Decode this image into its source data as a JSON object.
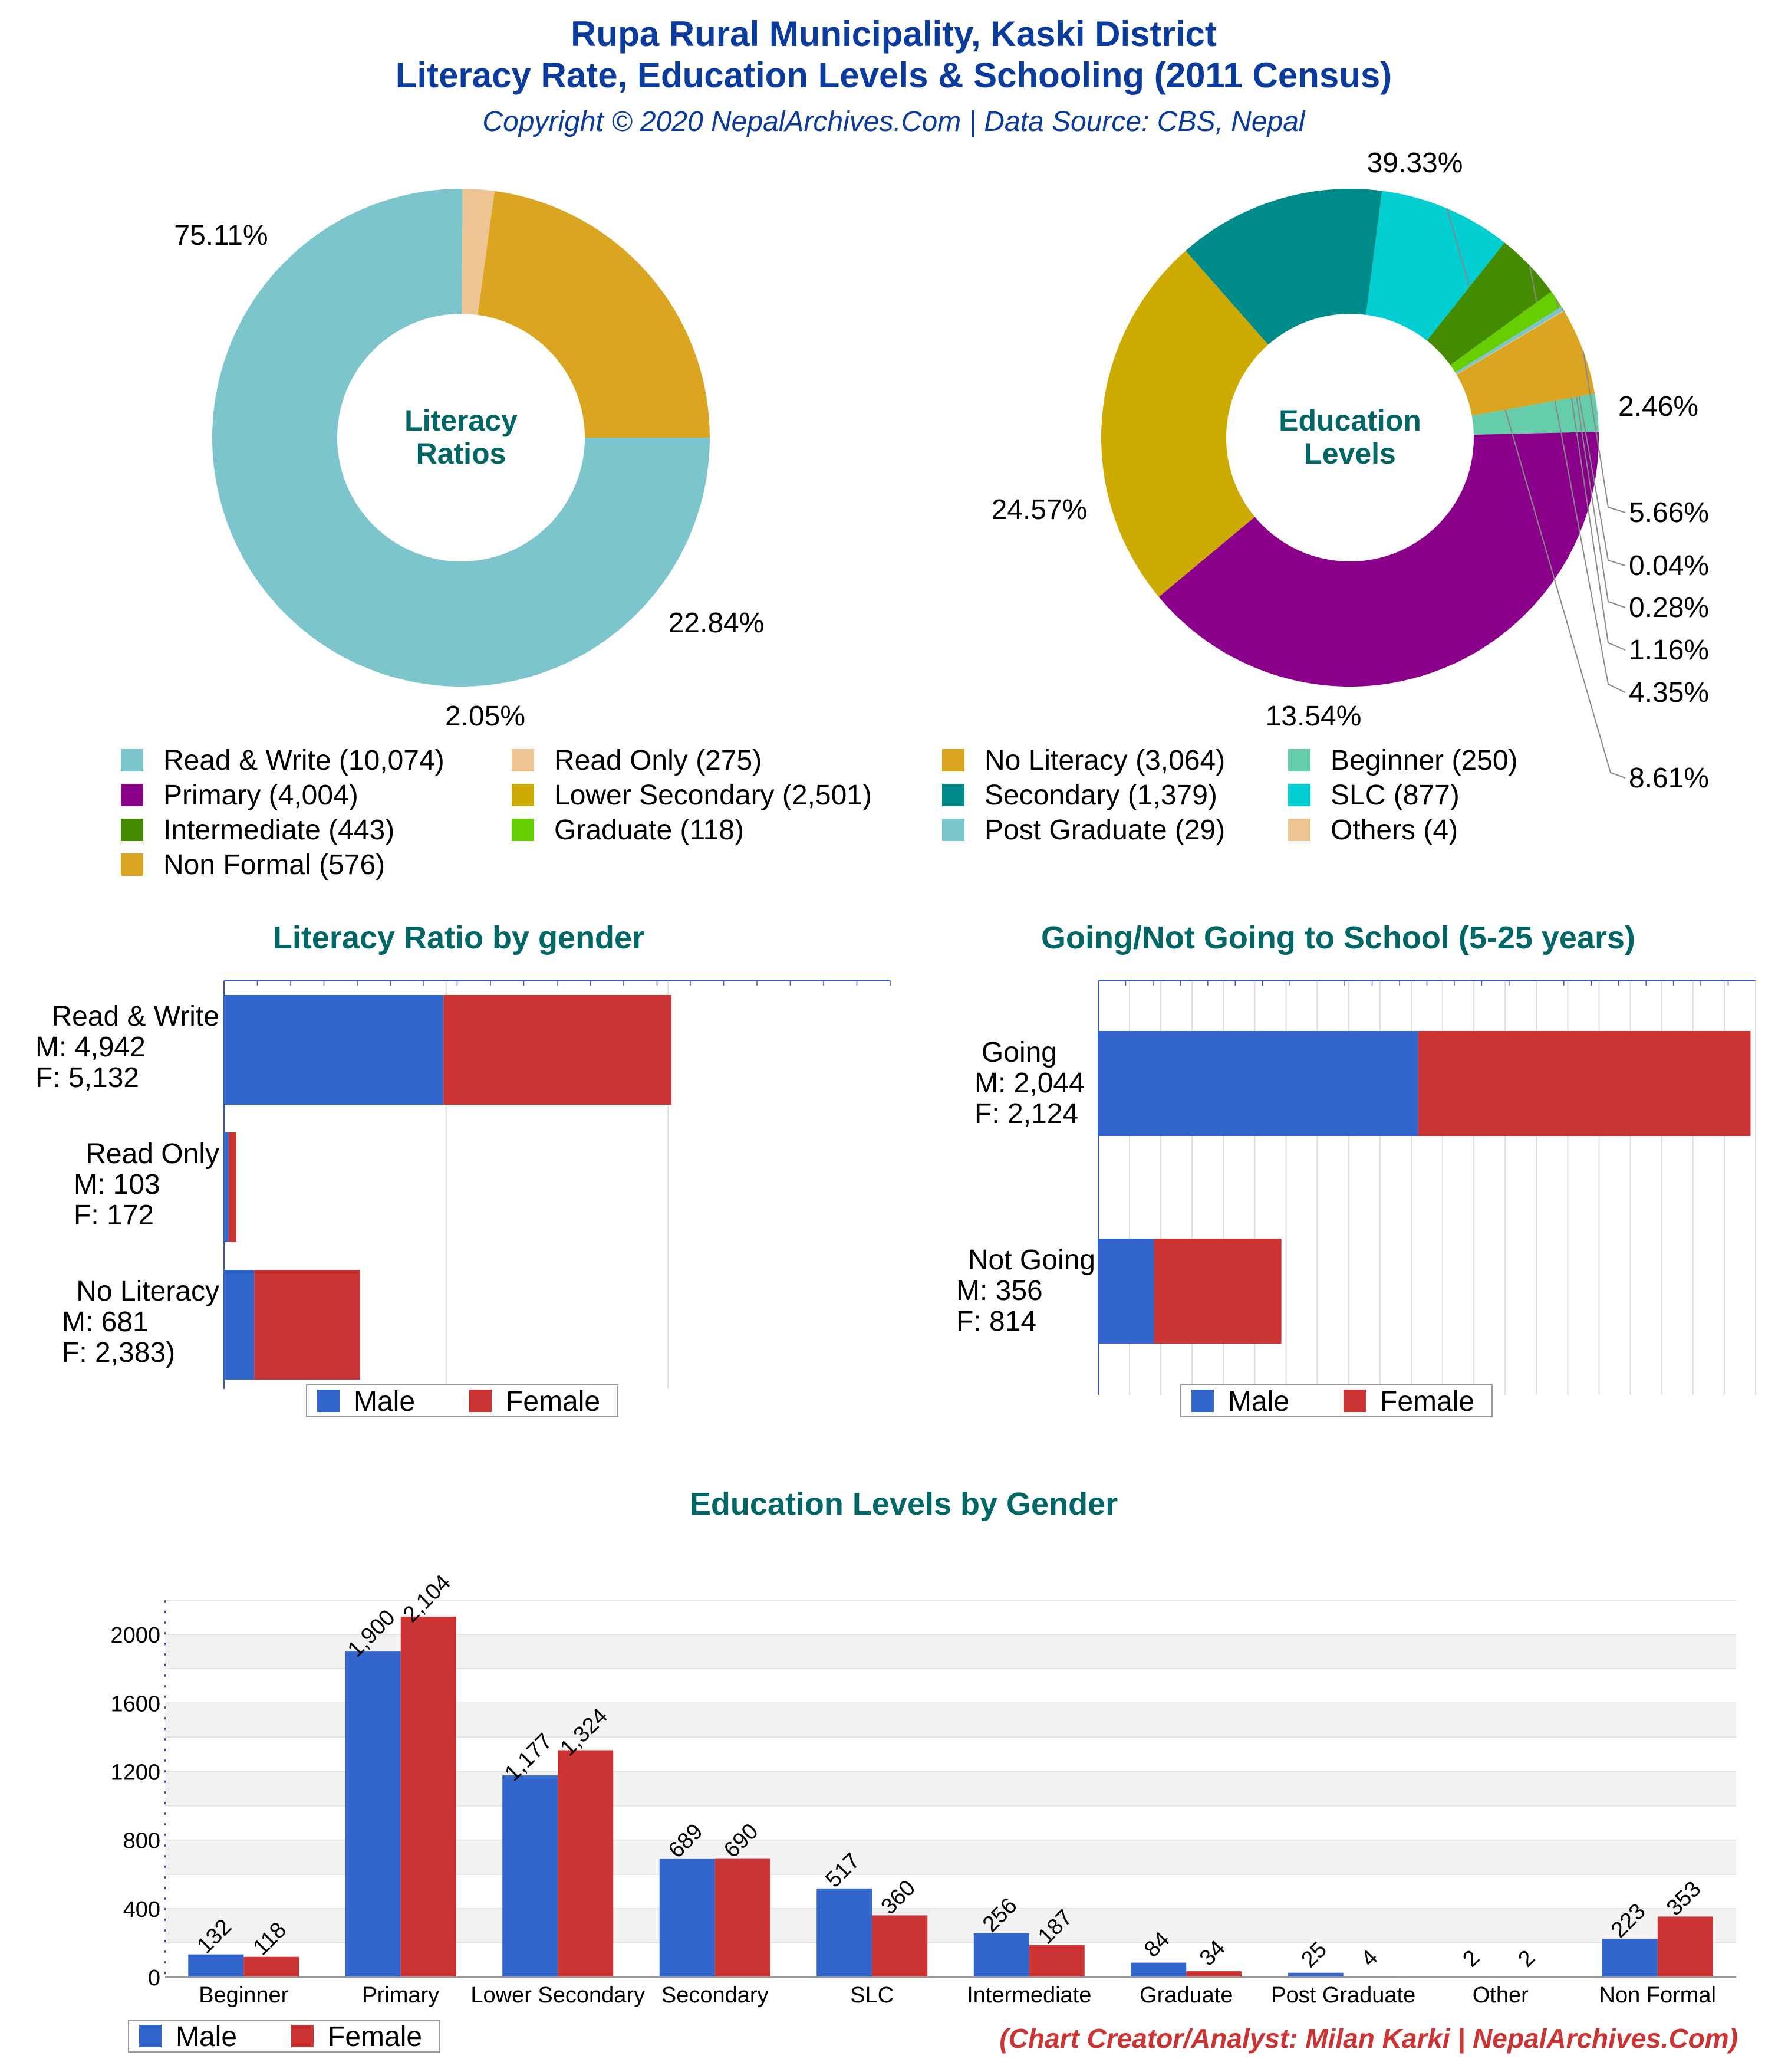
{
  "header": {
    "title_line1": "Rupa Rural Municipality, Kaski District",
    "title_line2": "Literacy Rate, Education Levels & Schooling (2011 Census)",
    "subtitle": "Copyright © 2020 NepalArchives.Com | Data Source: CBS, Nepal"
  },
  "footer": {
    "credit": "(Chart Creator/Analyst: Milan Karki | NepalArchives.Com)"
  },
  "colors": {
    "title": "#0b3b9c",
    "section_title": "#006666",
    "male": "#3366cc",
    "female": "#cc3333",
    "credit": "#cc3333"
  },
  "chart_data": [
    {
      "type": "pie",
      "center_label": [
        "Literacy",
        "Ratios"
      ],
      "slices": [
        {
          "label": "Read & Write (10,074)",
          "value": 10074,
          "percent_label": "75.11%",
          "color": "#7cc5cc"
        },
        {
          "label": "Read Only (275)",
          "value": 275,
          "percent_label": "2.05%",
          "color": "#eec592"
        },
        {
          "label": "No Literacy (3,064)",
          "value": 3064,
          "percent_label": "22.84%",
          "color": "#daa520"
        }
      ]
    },
    {
      "type": "pie",
      "center_label": [
        "Education",
        "Levels"
      ],
      "slices": [
        {
          "label": "Beginner (250)",
          "value": 250,
          "percent_label": "2.46%",
          "color": "#66cdaa"
        },
        {
          "label": "Primary (4,004)",
          "value": 4004,
          "percent_label": "39.33%",
          "color": "#8b008b"
        },
        {
          "label": "Lower Secondary (2,501)",
          "value": 2501,
          "percent_label": "24.57%",
          "color": "#ccaa00"
        },
        {
          "label": "Secondary (1,379)",
          "value": 1379,
          "percent_label": "13.54%",
          "color": "#008b8b"
        },
        {
          "label": "SLC (877)",
          "value": 877,
          "percent_label": "8.61%",
          "color": "#00ced1"
        },
        {
          "label": "Intermediate (443)",
          "value": 443,
          "percent_label": "4.35%",
          "color": "#458b00"
        },
        {
          "label": "Graduate (118)",
          "value": 118,
          "percent_label": "1.16%",
          "color": "#66cd00"
        },
        {
          "label": "Post Graduate (29)",
          "value": 29,
          "percent_label": "0.28%",
          "color": "#7cc5cc"
        },
        {
          "label": "Others (4)",
          "value": 4,
          "percent_label": "0.04%",
          "color": "#eec592"
        },
        {
          "label": "Non Formal (576)",
          "value": 576,
          "percent_label": "5.66%",
          "color": "#daa520"
        }
      ]
    },
    {
      "type": "bar",
      "orientation": "horizontal",
      "stacked": true,
      "title": "Literacy Ratio by gender",
      "categories": [
        "Read & Write",
        "Read Only",
        "No Literacy"
      ],
      "category_labels": [
        [
          "Read & Write",
          "M: 4,942",
          "F: 5,132"
        ],
        [
          "Read Only",
          "M: 103",
          "F: 172"
        ],
        [
          "No Literacy",
          "M: 681",
          "F: 2,383)"
        ]
      ],
      "series": [
        {
          "name": "Male",
          "values": [
            4942,
            103,
            681
          ]
        },
        {
          "name": "Female",
          "values": [
            5132,
            172,
            2383
          ]
        }
      ],
      "xlim": [
        0,
        15000
      ],
      "legend": "bottom"
    },
    {
      "type": "bar",
      "orientation": "horizontal",
      "stacked": true,
      "title": "Going/Not Going to School (5-25 years)",
      "categories": [
        "Going",
        "Not Going"
      ],
      "category_labels": [
        [
          "Going",
          "M: 2,044",
          "F: 2,124"
        ],
        [
          "Not Going",
          "M: 356",
          "F: 814"
        ]
      ],
      "series": [
        {
          "name": "Male",
          "values": [
            2044,
            356
          ]
        },
        {
          "name": "Female",
          "values": [
            2124,
            814
          ]
        }
      ],
      "xlim": [
        0,
        4200
      ],
      "legend": "bottom"
    },
    {
      "type": "bar",
      "title": "Education Levels by Gender",
      "categories": [
        "Beginner",
        "Primary",
        "Lower Secondary",
        "Secondary",
        "SLC",
        "Intermediate",
        "Graduate",
        "Post Graduate",
        "Other",
        "Non Formal"
      ],
      "series": [
        {
          "name": "Male",
          "values": [
            132,
            1900,
            1177,
            689,
            517,
            256,
            84,
            25,
            2,
            223
          ],
          "labels": [
            "132",
            "1,900",
            "1,177",
            "689",
            "517",
            "256",
            "84",
            "25",
            "2",
            "223"
          ]
        },
        {
          "name": "Female",
          "values": [
            118,
            2104,
            1324,
            690,
            360,
            187,
            34,
            4,
            2,
            353
          ],
          "labels": [
            "118",
            "2,104",
            "1,324",
            "690",
            "360",
            "187",
            "34",
            "4",
            "2",
            "353"
          ]
        }
      ],
      "yticks": [
        "0",
        "400",
        "800",
        "1200",
        "1600",
        "2000"
      ],
      "ylim": [
        0,
        2200
      ],
      "grid": true,
      "legend": "bottom-left"
    }
  ]
}
